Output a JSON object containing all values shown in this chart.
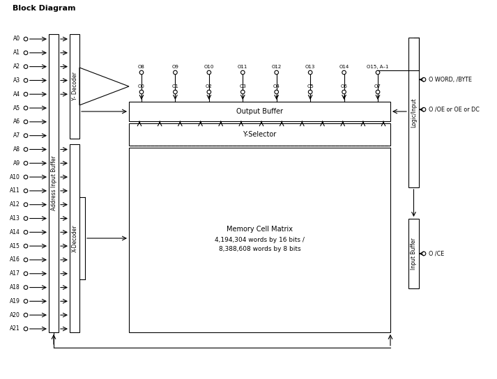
{
  "title": "Block Diagram",
  "bg_color": "#ffffff",
  "line_color": "#000000",
  "text_color": "#000000",
  "address_labels": [
    "A0",
    "A1",
    "A2",
    "A3",
    "A4",
    "A5",
    "A6",
    "A7",
    "A8",
    "A9",
    "A10",
    "A11",
    "A12",
    "A13",
    "A14",
    "A15",
    "A16",
    "A17",
    "A18",
    "A19",
    "A20",
    "A21"
  ],
  "output_pins_row1": [
    "O8",
    "O9",
    "O10",
    "O11",
    "O12",
    "O13",
    "O14",
    "O15, A–1"
  ],
  "output_pins_row2": [
    "O0",
    "O1",
    "O2",
    "O3",
    "O4",
    "O5",
    "O6",
    "O7"
  ],
  "memory_text1": "Memory Cell Matrix",
  "memory_text2": "4,194,304 words by 16 bits /",
  "memory_text3": "8,388,608 words by 8 bits",
  "right_label1": "O WORD, /BYTE",
  "right_label2": "O /OE or OE or DC",
  "ce_label": "O /CE",
  "aib_label": "Address Input Buffer",
  "yd_label": "Y- Decoder",
  "xd_label": "X-Decoder",
  "ob_label": "Output Buffer",
  "ys_label": "Y-Selector",
  "li_label": "Logic/Input",
  "ib_label": "Input Buffer"
}
